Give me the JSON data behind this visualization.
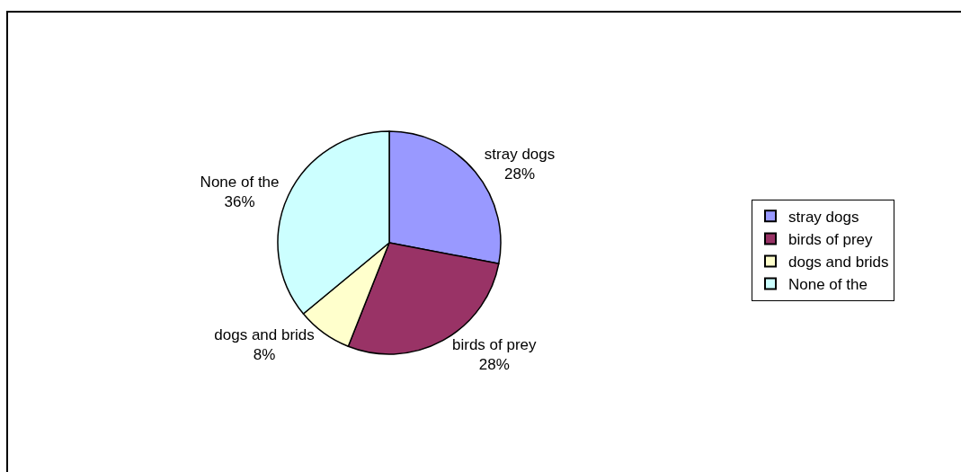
{
  "chart_data": {
    "type": "pie",
    "categories": [
      "stray dogs",
      "birds of prey",
      "dogs and brids",
      "None of the"
    ],
    "values": [
      28,
      28,
      8,
      36
    ],
    "value_labels": [
      "28%",
      "28%",
      "8%",
      "36%"
    ],
    "colors": [
      "#9999ff",
      "#993366",
      "#ffffcc",
      "#ccffff"
    ],
    "legend": "right"
  }
}
